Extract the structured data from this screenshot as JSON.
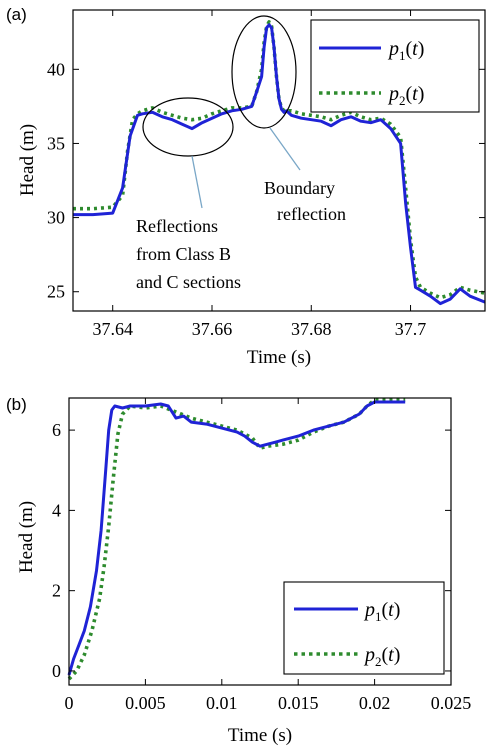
{
  "chart_data": [
    {
      "panel": "(a)",
      "type": "line",
      "xlabel": "Time (s)",
      "ylabel": "Head (m)",
      "xlim": [
        37.632,
        37.715
      ],
      "ylim": [
        23.7,
        44.0
      ],
      "xticks": [
        37.64,
        37.66,
        37.68,
        37.7
      ],
      "xtick_labels": [
        "37.64",
        "37.66",
        "37.68",
        "37.7"
      ],
      "yticks": [
        25,
        30,
        35,
        40
      ],
      "ytick_labels": [
        "25",
        "30",
        "35",
        "40"
      ],
      "legend": {
        "placement": "top-right",
        "entries": [
          "p1(t)",
          "p2(t)"
        ]
      },
      "series": [
        {
          "name": "p1(t)",
          "color": "#1f23d6",
          "style": "solid",
          "x": [
            37.632,
            37.636,
            37.64,
            37.642,
            37.6435,
            37.645,
            37.646,
            37.648,
            37.65,
            37.652,
            37.654,
            37.656,
            37.658,
            37.66,
            37.662,
            37.664,
            37.666,
            37.668,
            37.669,
            37.67,
            37.6705,
            37.671,
            37.6715,
            37.672,
            37.6725,
            37.673,
            37.6735,
            37.674,
            37.6745,
            37.675,
            37.676,
            37.678,
            37.68,
            37.682,
            37.684,
            37.686,
            37.688,
            37.69,
            37.692,
            37.694,
            37.696,
            37.698,
            37.699,
            37.7,
            37.701,
            37.702,
            37.704,
            37.706,
            37.708,
            37.71,
            37.712,
            37.715
          ],
          "y": [
            30.2,
            30.2,
            30.3,
            32.0,
            35.5,
            36.9,
            37.0,
            37.1,
            36.8,
            36.6,
            36.3,
            36.0,
            36.4,
            36.7,
            37.0,
            37.2,
            37.3,
            37.5,
            38.5,
            39.5,
            41.5,
            42.8,
            43.0,
            42.8,
            41.5,
            39.5,
            38.0,
            37.3,
            37.1,
            37.2,
            36.9,
            36.7,
            36.6,
            36.5,
            36.2,
            36.6,
            36.8,
            36.5,
            36.4,
            36.6,
            36.0,
            35.0,
            31.0,
            28.0,
            25.3,
            25.1,
            24.7,
            24.2,
            24.5,
            25.2,
            24.7,
            24.3
          ]
        },
        {
          "name": "p2(t)",
          "color": "#2e8b2e",
          "style": "dotted",
          "x": [
            37.632,
            37.636,
            37.64,
            37.642,
            37.643,
            37.644,
            37.645,
            37.646,
            37.648,
            37.65,
            37.652,
            37.654,
            37.656,
            37.658,
            37.66,
            37.662,
            37.664,
            37.666,
            37.668,
            37.669,
            37.67,
            37.6705,
            37.671,
            37.6715,
            37.672,
            37.6725,
            37.673,
            37.6735,
            37.674,
            37.6745,
            37.676,
            37.678,
            37.68,
            37.682,
            37.684,
            37.686,
            37.688,
            37.69,
            37.692,
            37.694,
            37.696,
            37.698,
            37.699,
            37.7,
            37.701,
            37.702,
            37.704,
            37.706,
            37.708,
            37.71,
            37.712,
            37.715
          ],
          "y": [
            30.6,
            30.6,
            30.7,
            31.5,
            34.5,
            36.6,
            37.0,
            37.2,
            37.4,
            37.1,
            36.9,
            36.7,
            36.6,
            36.7,
            37.0,
            37.2,
            37.4,
            37.4,
            37.5,
            38.5,
            40.0,
            41.8,
            42.9,
            43.2,
            42.9,
            41.5,
            39.5,
            38.0,
            37.4,
            37.2,
            37.2,
            37.0,
            36.9,
            36.8,
            36.6,
            36.9,
            37.1,
            36.8,
            36.6,
            36.7,
            36.3,
            35.4,
            32.0,
            28.5,
            26.0,
            25.3,
            24.9,
            24.6,
            24.8,
            25.3,
            25.1,
            24.9
          ]
        }
      ],
      "annotations": [
        {
          "lines": [
            "Reflections",
            "from Class B",
            "and C sections"
          ]
        },
        {
          "lines": [
            "Boundary",
            "reflection"
          ]
        }
      ]
    },
    {
      "panel": "(b)",
      "type": "line",
      "xlabel": "Time (s)",
      "ylabel": "Head (m)",
      "xlim": [
        0,
        0.025
      ],
      "ylim": [
        -0.35,
        6.8
      ],
      "xticks": [
        0,
        0.005,
        0.01,
        0.015,
        0.02,
        0.025
      ],
      "xtick_labels": [
        "0",
        "0.005",
        "0.01",
        "0.015",
        "0.02",
        "0.025"
      ],
      "yticks": [
        0,
        2,
        4,
        6
      ],
      "ytick_labels": [
        "0",
        "2",
        "4",
        "6"
      ],
      "legend": {
        "placement": "bottom-right",
        "entries": [
          "p1(t)",
          "p2(t)"
        ]
      },
      "series": [
        {
          "name": "p1(t)",
          "color": "#1f23d6",
          "style": "solid",
          "x": [
            0,
            0.0003,
            0.0006,
            0.001,
            0.0014,
            0.0018,
            0.0021,
            0.0024,
            0.0026,
            0.0028,
            0.003,
            0.0035,
            0.004,
            0.005,
            0.006,
            0.0065,
            0.007,
            0.0075,
            0.008,
            0.009,
            0.01,
            0.011,
            0.0115,
            0.012,
            0.0125,
            0.013,
            0.0135,
            0.014,
            0.015,
            0.016,
            0.017,
            0.018,
            0.019,
            0.0195,
            0.02,
            0.022
          ],
          "y": [
            -0.1,
            0.3,
            0.6,
            1.0,
            1.6,
            2.5,
            3.5,
            5.0,
            6.0,
            6.5,
            6.6,
            6.55,
            6.6,
            6.6,
            6.65,
            6.6,
            6.3,
            6.35,
            6.2,
            6.15,
            6.05,
            5.95,
            5.85,
            5.7,
            5.6,
            5.65,
            5.7,
            5.75,
            5.85,
            6.0,
            6.1,
            6.2,
            6.4,
            6.6,
            6.7,
            6.7
          ]
        },
        {
          "name": "p2(t)",
          "color": "#2e8b2e",
          "style": "dotted",
          "x": [
            0,
            0.0005,
            0.001,
            0.0015,
            0.002,
            0.0023,
            0.0026,
            0.0029,
            0.0032,
            0.0035,
            0.004,
            0.005,
            0.006,
            0.007,
            0.008,
            0.009,
            0.01,
            0.011,
            0.012,
            0.0125,
            0.013,
            0.014,
            0.015,
            0.016,
            0.017,
            0.018,
            0.019,
            0.0195,
            0.02,
            0.022
          ],
          "y": [
            -0.2,
            0.0,
            0.4,
            1.0,
            1.8,
            2.6,
            3.6,
            4.8,
            5.9,
            6.4,
            6.6,
            6.55,
            6.6,
            6.45,
            6.3,
            6.2,
            6.1,
            6.0,
            5.8,
            5.55,
            5.6,
            5.65,
            5.75,
            5.95,
            6.1,
            6.2,
            6.4,
            6.6,
            6.75,
            6.75
          ]
        }
      ]
    }
  ]
}
